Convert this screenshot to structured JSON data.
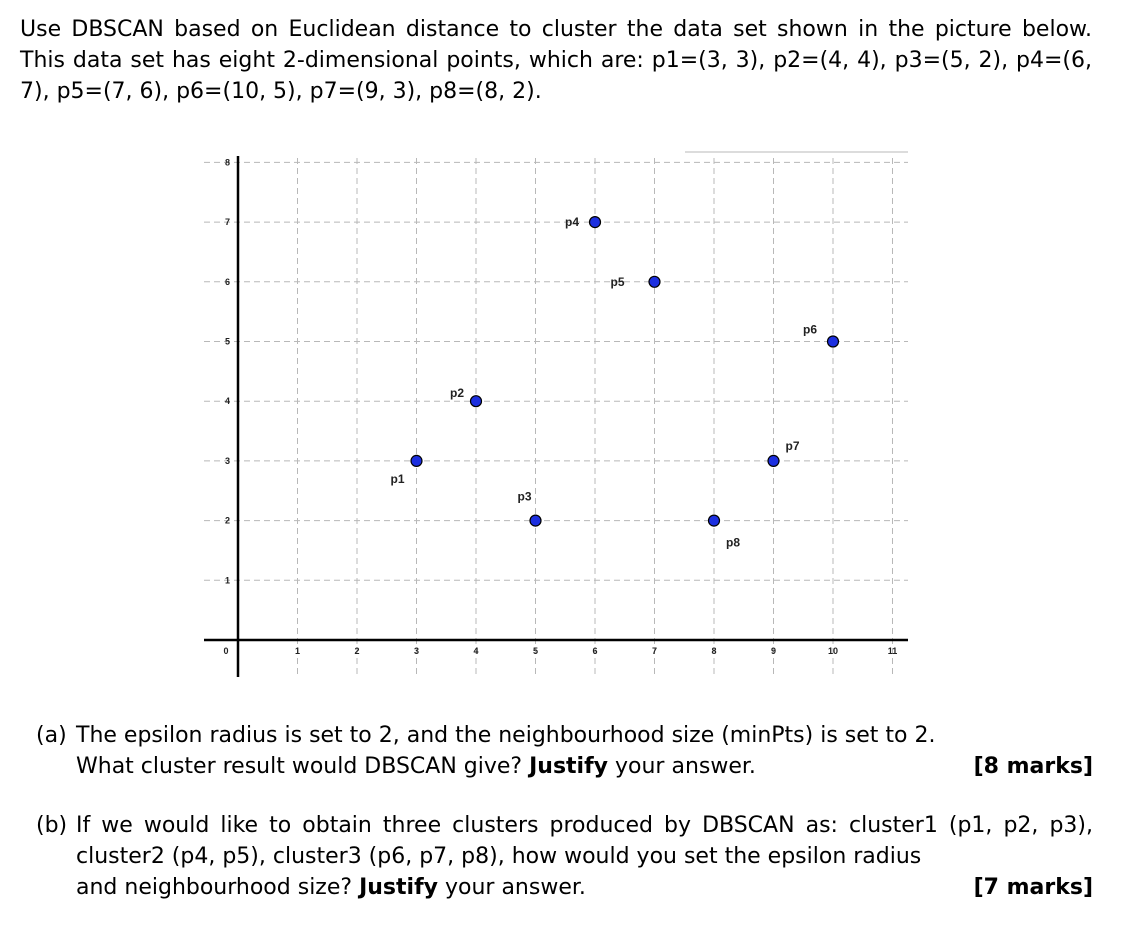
{
  "intro": {
    "text": "Use DBSCAN based on Euclidean distance to cluster the data set shown in the picture below.  This data set has eight 2-dimensional points, which are: p1=(3, 3), p2=(4, 4), p3=(5, 2), p4=(6, 7), p5=(7, 6), p6=(10, 5), p7=(9, 3), p8=(8, 2)."
  },
  "chart_data": {
    "type": "scatter",
    "title": "",
    "xlabel": "",
    "ylabel": "",
    "xlim": [
      0,
      11
    ],
    "ylim": [
      0,
      8
    ],
    "xticks": [
      "0",
      "1",
      "2",
      "3",
      "4",
      "5",
      "6",
      "7",
      "8",
      "9",
      "10",
      "11"
    ],
    "yticks": [
      "1",
      "2",
      "3",
      "4",
      "5",
      "6",
      "7",
      "8"
    ],
    "grid": true,
    "point_color": "#1c2fe0",
    "points": [
      {
        "label": "p1",
        "x": 3,
        "y": 3
      },
      {
        "label": "p2",
        "x": 4,
        "y": 4
      },
      {
        "label": "p3",
        "x": 5,
        "y": 2
      },
      {
        "label": "p4",
        "x": 6,
        "y": 7
      },
      {
        "label": "p5",
        "x": 7,
        "y": 6
      },
      {
        "label": "p6",
        "x": 10,
        "y": 5
      },
      {
        "label": "p7",
        "x": 9,
        "y": 3
      },
      {
        "label": "p8",
        "x": 8,
        "y": 2
      }
    ]
  },
  "question_a": {
    "label": "(a)",
    "line1": "The epsilon radius is set to 2, and the neighbourhood size (minPts) is set to 2.",
    "line2_pre": "What cluster result would DBSCAN give? ",
    "bold_word": "Justify",
    "line2_post": " your answer.",
    "marks": "[8 marks]"
  },
  "question_b": {
    "label": "(b)",
    "line1": "If we would like to obtain three clusters produced by DBSCAN as: cluster1 (p1, p2, p3), cluster2 (p4, p5), cluster3 (p6, p7, p8), how would you set the epsilon radius",
    "line2_pre": "and neighbourhood size? ",
    "bold_word": "Justify",
    "line2_post": " your answer.",
    "marks": "[7 marks]"
  }
}
